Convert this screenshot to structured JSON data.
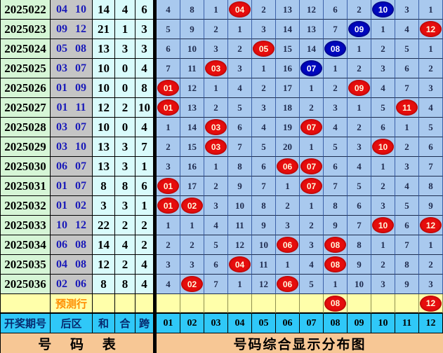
{
  "colors": {
    "red_circle": "#e60d0d",
    "blue_circle": "#0007bd",
    "grid_bg": "#a9c9ee",
    "period_bg": "#d6f6d6",
    "back_bg": "#c5c5c5",
    "stat_bg": "#d9fbfb",
    "prediction_bg": "#ffffaa",
    "header_bg": "#2fc8f8",
    "footer_bg": "#f7c795"
  },
  "chart_data": {
    "type": "table",
    "title": "号码综合显示分布图",
    "left_headers": {
      "period": "开奖期号",
      "back": "后区",
      "sum": "和",
      "he": "合",
      "span": "跨"
    },
    "number_headers": [
      "01",
      "02",
      "03",
      "04",
      "05",
      "06",
      "07",
      "08",
      "09",
      "10",
      "11",
      "12"
    ],
    "footer": {
      "left": "号 码 表",
      "right": "号码综合显示分布图"
    },
    "prediction": {
      "label": "预测行",
      "cells": [
        "",
        "",
        "",
        "",
        "",
        "",
        "",
        {
          "n": "08",
          "c": "red"
        },
        "",
        "",
        "",
        {
          "n": "12",
          "c": "red"
        }
      ]
    },
    "rows": [
      {
        "period": "2025022",
        "back": "04 10",
        "sum": "14",
        "he": "4",
        "span": "6",
        "cells": [
          "4",
          "8",
          "1",
          {
            "n": "04",
            "c": "red"
          },
          "2",
          "13",
          "12",
          "6",
          "2",
          {
            "n": "10",
            "c": "blue"
          },
          "3",
          "1"
        ]
      },
      {
        "period": "2025023",
        "back": "09 12",
        "sum": "21",
        "he": "1",
        "span": "3",
        "cells": [
          "5",
          "9",
          "2",
          "1",
          "3",
          "14",
          "13",
          "7",
          {
            "n": "09",
            "c": "blue"
          },
          "1",
          "4",
          {
            "n": "12",
            "c": "red"
          }
        ]
      },
      {
        "period": "2025024",
        "back": "05 08",
        "sum": "13",
        "he": "3",
        "span": "3",
        "cells": [
          "6",
          "10",
          "3",
          "2",
          {
            "n": "05",
            "c": "red"
          },
          "15",
          "14",
          {
            "n": "08",
            "c": "blue"
          },
          "1",
          "2",
          "5",
          "1"
        ]
      },
      {
        "period": "2025025",
        "back": "03 07",
        "sum": "10",
        "he": "0",
        "span": "4",
        "cells": [
          "7",
          "11",
          {
            "n": "03",
            "c": "red"
          },
          "3",
          "1",
          "16",
          {
            "n": "07",
            "c": "blue"
          },
          "1",
          "2",
          "3",
          "6",
          "2"
        ]
      },
      {
        "period": "2025026",
        "back": "01 09",
        "sum": "10",
        "he": "0",
        "span": "8",
        "cells": [
          {
            "n": "01",
            "c": "red"
          },
          "12",
          "1",
          "4",
          "2",
          "17",
          "1",
          "2",
          {
            "n": "09",
            "c": "red"
          },
          "4",
          "7",
          "3"
        ]
      },
      {
        "period": "2025027",
        "back": "01 11",
        "sum": "12",
        "he": "2",
        "span": "10",
        "cells": [
          {
            "n": "01",
            "c": "red"
          },
          "13",
          "2",
          "5",
          "3",
          "18",
          "2",
          "3",
          "1",
          "5",
          {
            "n": "11",
            "c": "red"
          },
          "4"
        ]
      },
      {
        "period": "2025028",
        "back": "03 07",
        "sum": "10",
        "he": "0",
        "span": "4",
        "cells": [
          "1",
          "14",
          {
            "n": "03",
            "c": "red"
          },
          "6",
          "4",
          "19",
          {
            "n": "07",
            "c": "red"
          },
          "4",
          "2",
          "6",
          "1",
          "5"
        ]
      },
      {
        "period": "2025029",
        "back": "03 10",
        "sum": "13",
        "he": "3",
        "span": "7",
        "cells": [
          "2",
          "15",
          {
            "n": "03",
            "c": "red"
          },
          "7",
          "5",
          "20",
          "1",
          "5",
          "3",
          {
            "n": "10",
            "c": "red"
          },
          "2",
          "6"
        ]
      },
      {
        "period": "2025030",
        "back": "06 07",
        "sum": "13",
        "he": "3",
        "span": "1",
        "cells": [
          "3",
          "16",
          "1",
          "8",
          "6",
          {
            "n": "06",
            "c": "red"
          },
          {
            "n": "07",
            "c": "red"
          },
          "6",
          "4",
          "1",
          "3",
          "7"
        ]
      },
      {
        "period": "2025031",
        "back": "01 07",
        "sum": "8",
        "he": "8",
        "span": "6",
        "cells": [
          {
            "n": "01",
            "c": "red"
          },
          "17",
          "2",
          "9",
          "7",
          "1",
          {
            "n": "07",
            "c": "red"
          },
          "7",
          "5",
          "2",
          "4",
          "8"
        ]
      },
      {
        "period": "2025032",
        "back": "01 02",
        "sum": "3",
        "he": "3",
        "span": "1",
        "cells": [
          {
            "n": "01",
            "c": "red"
          },
          {
            "n": "02",
            "c": "red"
          },
          "3",
          "10",
          "8",
          "2",
          "1",
          "8",
          "6",
          "3",
          "5",
          "9"
        ]
      },
      {
        "period": "2025033",
        "back": "10 12",
        "sum": "22",
        "he": "2",
        "span": "2",
        "cells": [
          "1",
          "1",
          "4",
          "11",
          "9",
          "3",
          "2",
          "9",
          "7",
          {
            "n": "10",
            "c": "red"
          },
          "6",
          {
            "n": "12",
            "c": "red"
          }
        ]
      },
      {
        "period": "2025034",
        "back": "06 08",
        "sum": "14",
        "he": "4",
        "span": "2",
        "cells": [
          "2",
          "2",
          "5",
          "12",
          "10",
          {
            "n": "06",
            "c": "red"
          },
          "3",
          {
            "n": "08",
            "c": "red"
          },
          "8",
          "1",
          "7",
          "1"
        ]
      },
      {
        "period": "2025035",
        "back": "04 08",
        "sum": "12",
        "he": "2",
        "span": "4",
        "cells": [
          "3",
          "3",
          "6",
          {
            "n": "04",
            "c": "red"
          },
          "11",
          "1",
          "4",
          {
            "n": "08",
            "c": "red"
          },
          "9",
          "2",
          "8",
          "2"
        ]
      },
      {
        "period": "2025036",
        "back": "02 06",
        "sum": "8",
        "he": "8",
        "span": "4",
        "cells": [
          "4",
          {
            "n": "02",
            "c": "red"
          },
          "7",
          "1",
          "12",
          {
            "n": "06",
            "c": "red"
          },
          "5",
          "1",
          "10",
          "3",
          "9",
          "3"
        ]
      }
    ]
  }
}
